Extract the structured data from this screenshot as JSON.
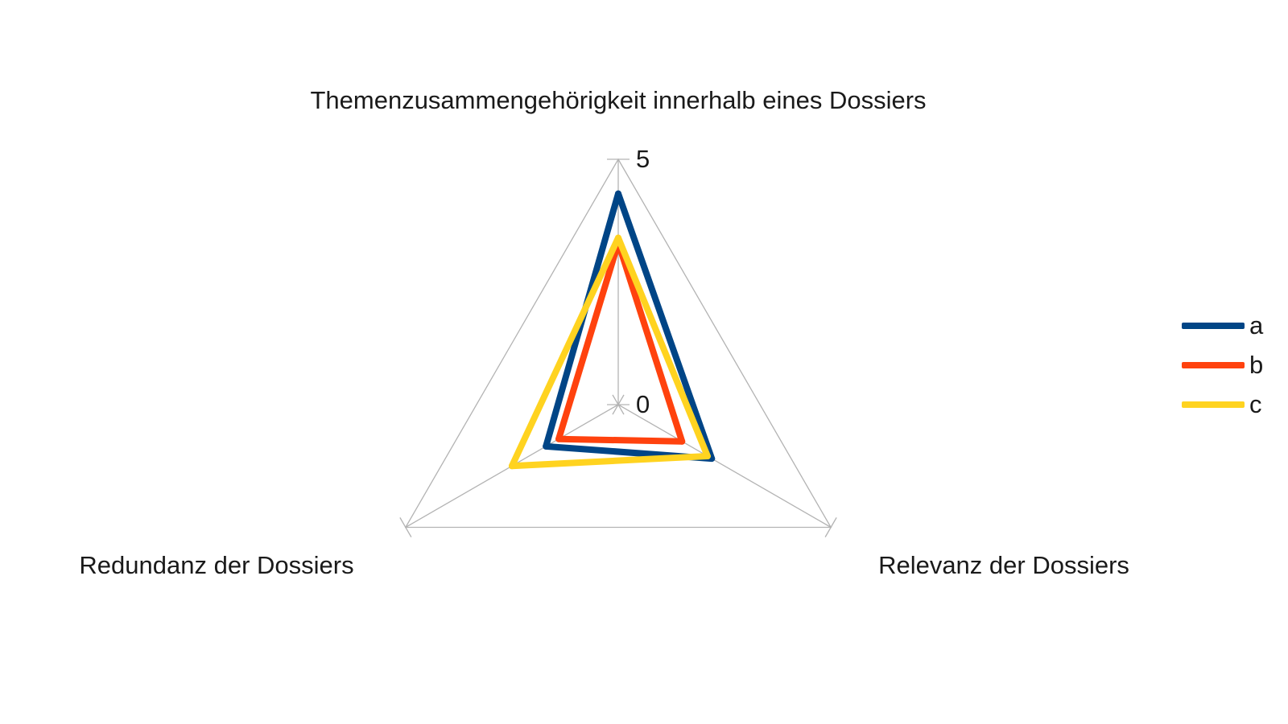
{
  "chart_data": {
    "type": "radar",
    "axes": [
      "Themenzusammengehörigkeit innerhalb eines Dossiers",
      "Relevanz der Dossiers",
      "Redundanz der Dossiers"
    ],
    "range": [
      0,
      5
    ],
    "tick_labels": [
      "0",
      "5"
    ],
    "grid": true,
    "legend_position": "right",
    "series": [
      {
        "name": "a",
        "color": "#004586",
        "values": [
          4.3,
          2.2,
          1.7
        ]
      },
      {
        "name": "b",
        "color": "#ff420e",
        "values": [
          3.3,
          1.5,
          1.4
        ]
      },
      {
        "name": "c",
        "color": "#ffd320",
        "values": [
          3.4,
          2.1,
          2.5
        ]
      }
    ]
  }
}
